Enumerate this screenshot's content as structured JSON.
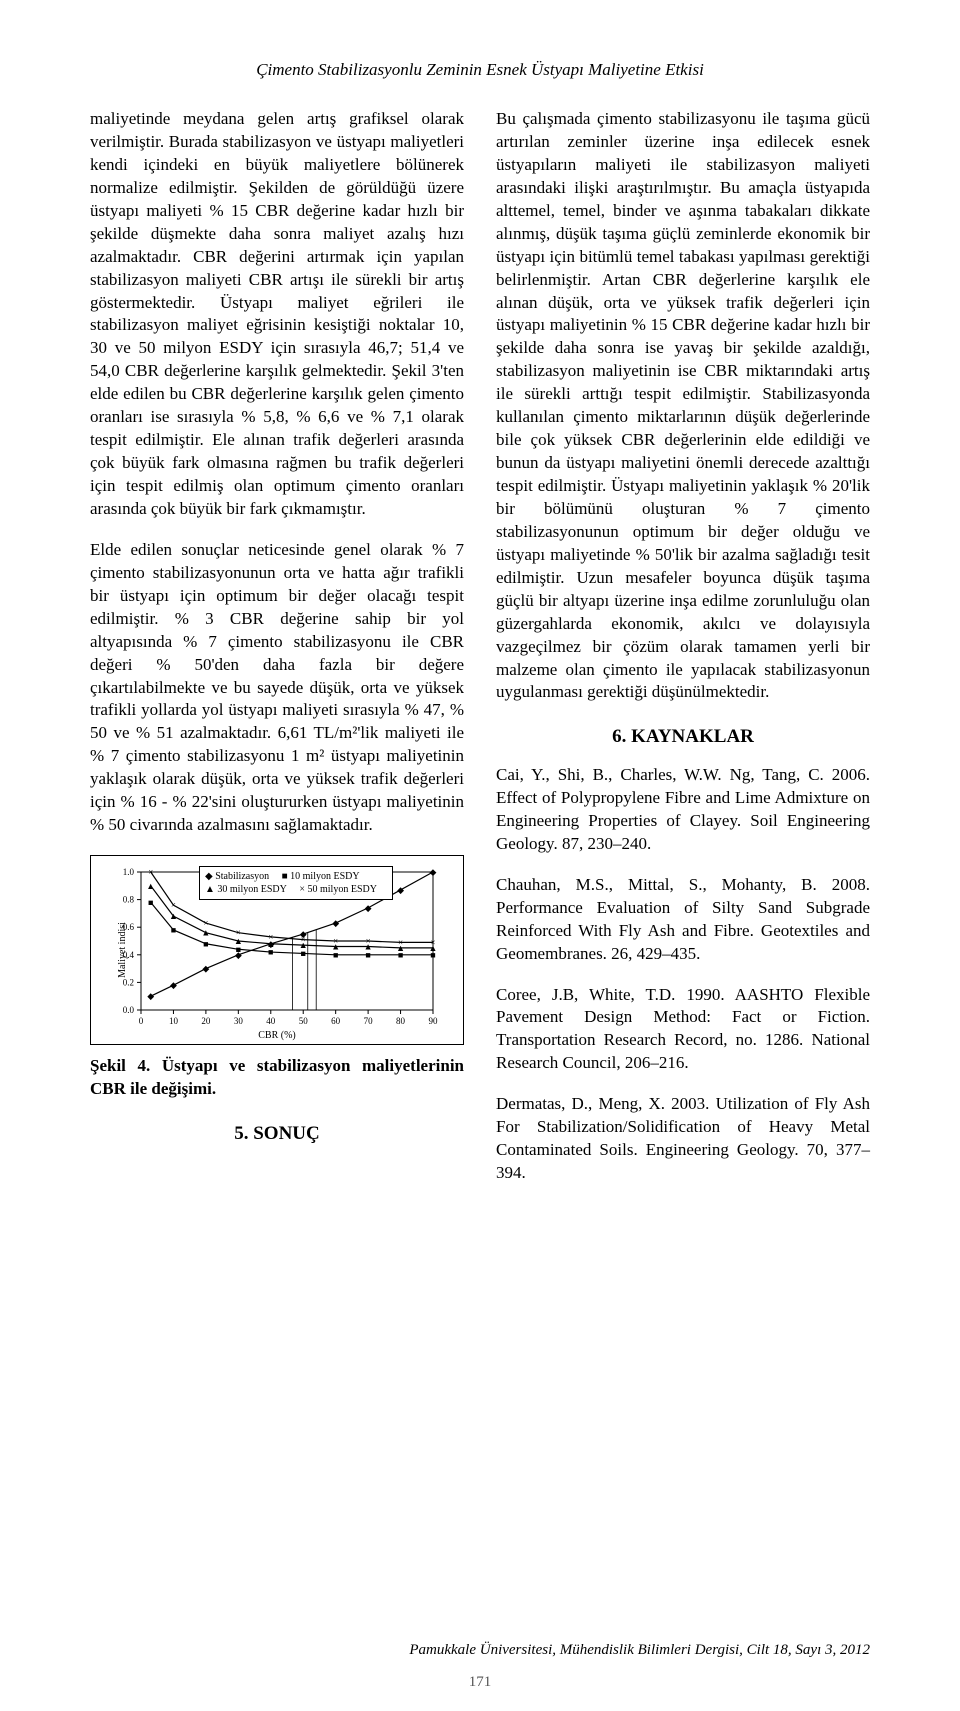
{
  "running_title": "Çimento Stabilizasyonlu Zeminin Esnek Üstyapı Maliyetine Etkisi",
  "left": {
    "p1": "maliyetinde meydana gelen artış grafiksel olarak verilmiştir. Burada stabilizasyon ve üstyapı maliyetleri kendi içindeki en büyük maliyetlere bölünerek normalize edilmiştir. Şekilden de görüldüğü üzere üstyapı maliyeti % 15 CBR değerine kadar hızlı bir şekilde düşmekte daha sonra maliyet azalış hızı azalmaktadır. CBR değerini artırmak için yapılan stabilizasyon maliyeti CBR artışı ile sürekli bir artış göstermektedir. Üstyapı maliyet eğrileri ile stabilizasyon maliyet eğrisinin kesiştiği noktalar 10, 30 ve 50 milyon ESDY için sırasıyla 46,7; 51,4 ve 54,0 CBR değerlerine karşılık gelmektedir. Şekil 3'ten elde edilen bu CBR değerlerine karşılık gelen çimento oranları ise sırasıyla % 5,8, % 6,6 ve % 7,1 olarak tespit edilmiştir. Ele alınan trafik değerleri arasında çok büyük fark olmasına rağmen bu trafik değerleri için tespit edilmiş olan optimum çimento oranları arasında çok büyük bir fark çıkmamıştır.",
    "p2": "Elde edilen sonuçlar neticesinde genel olarak % 7 çimento stabilizasyonunun orta ve hatta ağır trafikli bir üstyapı için optimum bir değer olacağı tespit edilmiştir. % 3 CBR değerine sahip bir yol altyapısında % 7 çimento stabilizasyonu ile CBR değeri % 50'den daha fazla bir değere çıkartılabilmekte ve bu sayede düşük, orta ve yüksek trafikli yollarda yol üstyapı maliyeti sırasıyla % 47, % 50 ve % 51 azalmaktadır. 6,61 TL/m²'lik maliyeti ile % 7 çimento stabilizasyonu 1 m² üstyapı maliyetinin yaklaşık olarak düşük, orta ve yüksek trafik değerleri için % 16 - % 22'sini oluştururken üstyapı maliyetinin % 50 civarında azalmasını sağlamaktadır."
  },
  "figure4": {
    "caption": "Şekil 4. Üstyapı ve stabilizasyon maliyetlerinin CBR ile değişimi.",
    "type": "line",
    "xlabel": "CBR (%)",
    "ylabel": "Maliyet indisi",
    "xlim": [
      0,
      90
    ],
    "ylim": [
      0.0,
      1.0
    ],
    "xtick_step": 10,
    "ytick_step": 0.2,
    "xticks": [
      0,
      10,
      20,
      30,
      40,
      50,
      60,
      70,
      80,
      90
    ],
    "yticks": [
      0.0,
      0.2,
      0.4,
      0.6,
      0.8,
      1.0
    ],
    "background_color": "#ffffff",
    "axis_color": "#000000",
    "font_size_ticks": 9,
    "legend": {
      "border": "#000000",
      "items": [
        {
          "marker": "◆",
          "label": "Stabilizasyon"
        },
        {
          "marker": "■",
          "label": "10 milyon ESDY"
        },
        {
          "marker": "▲",
          "label": "30 milyon ESDY"
        },
        {
          "marker": "×",
          "label": "50 milyon ESDY"
        }
      ]
    },
    "series": [
      {
        "name": "Stabilizasyon",
        "marker": "◆",
        "color": "#000000",
        "x": [
          3,
          10,
          20,
          30,
          40,
          50,
          60,
          70,
          80,
          90
        ],
        "y": [
          0.1,
          0.18,
          0.3,
          0.4,
          0.48,
          0.55,
          0.63,
          0.74,
          0.87,
          1.0
        ]
      },
      {
        "name": "10 milyon ESDY",
        "marker": "■",
        "color": "#000000",
        "x": [
          3,
          10,
          20,
          30,
          40,
          50,
          60,
          70,
          80,
          90
        ],
        "y": [
          0.78,
          0.58,
          0.48,
          0.44,
          0.42,
          0.41,
          0.4,
          0.4,
          0.4,
          0.4
        ]
      },
      {
        "name": "30 milyon ESDY",
        "marker": "▲",
        "color": "#000000",
        "x": [
          3,
          10,
          20,
          30,
          40,
          50,
          60,
          70,
          80,
          90
        ],
        "y": [
          0.9,
          0.68,
          0.56,
          0.5,
          0.48,
          0.47,
          0.46,
          0.46,
          0.45,
          0.45
        ]
      },
      {
        "name": "50 milyon ESDY",
        "marker": "×",
        "color": "#000000",
        "x": [
          3,
          10,
          20,
          30,
          40,
          50,
          60,
          70,
          80,
          90
        ],
        "y": [
          1.0,
          0.76,
          0.63,
          0.56,
          0.53,
          0.51,
          0.5,
          0.5,
          0.49,
          0.49
        ]
      }
    ],
    "intersection_droplines_x": [
      46.7,
      51.4,
      54.0
    ]
  },
  "right": {
    "sonuc_heading": "5. SONUÇ",
    "p1": "Bu çalışmada çimento stabilizasyonu ile taşıma gücü artırılan zeminler üzerine inşa edilecek esnek üstyapıların maliyeti ile stabilizasyon maliyeti arasındaki ilişki araştırılmıştır. Bu amaçla üstyapıda alttemel, temel, binder ve aşınma tabakaları dikkate alınmış, düşük taşıma güçlü zeminlerde ekonomik bir üstyapı için bitümlü temel tabakası yapılması gerektiği belirlenmiştir. Artan CBR değerlerine karşılık ele alınan düşük, orta ve yüksek trafik değerleri için üstyapı maliyetinin % 15 CBR değerine kadar hızlı bir şekilde daha sonra ise yavaş bir şekilde azaldığı, stabilizasyon maliyetinin ise CBR miktarındaki artış ile sürekli arttığı tespit edilmiştir. Stabilizasyonda kullanılan çimento miktarlarının düşük değerlerinde bile çok yüksek CBR değerlerinin elde edildiği ve bunun da üstyapı maliyetini önemli derecede azalttığı tespit edilmiştir. Üstyapı maliyetinin yaklaşık % 20'lik bir bölümünü oluşturan % 7 çimento stabilizasyonunun optimum bir değer olduğu ve üstyapı maliyetinde % 50'lik bir azalma sağladığı tesit edilmiştir. Uzun mesafeler boyunca düşük taşıma güçlü bir altyapı üzerine inşa edilme zorunluluğu olan güzergahlarda ekonomik, akılcı ve dolayısıyla vazgeçilmez bir çözüm olarak tamamen yerli bir malzeme olan çimento ile yapılacak stabilizasyonun uygulanması gerektiği düşünülmektedir.",
    "kaynaklar_heading": "6. KAYNAKLAR",
    "refs": [
      "Cai, Y., Shi, B., Charles, W.W. Ng, Tang, C. 2006.  Effect of Polypropylene Fibre and Lime Admixture on Engineering Properties of Clayey. Soil Engineering Geology. 87, 230–240.",
      "Chauhan, M.S., Mittal, S., Mohanty, B. 2008. Performance Evaluation of Silty Sand Subgrade Reinforced With Fly Ash and Fibre. Geotextiles and Geomembranes. 26, 429–435.",
      "Coree, J.B, White, T.D. 1990. AASHTO Flexible Pavement Design Method: Fact or Fiction. Transportation Research Record, no. 1286. National Research Council, 206–216.",
      "Dermatas, D., Meng, X. 2003. Utilization of Fly Ash For Stabilization/Solidification of Heavy Metal Contaminated Soils. Engineering Geology. 70, 377–394."
    ]
  },
  "footer": "Pamukkale Üniversitesi, Mühendislik Bilimleri Dergisi, Cilt 18, Sayı 3, 2012",
  "page_number": "171"
}
